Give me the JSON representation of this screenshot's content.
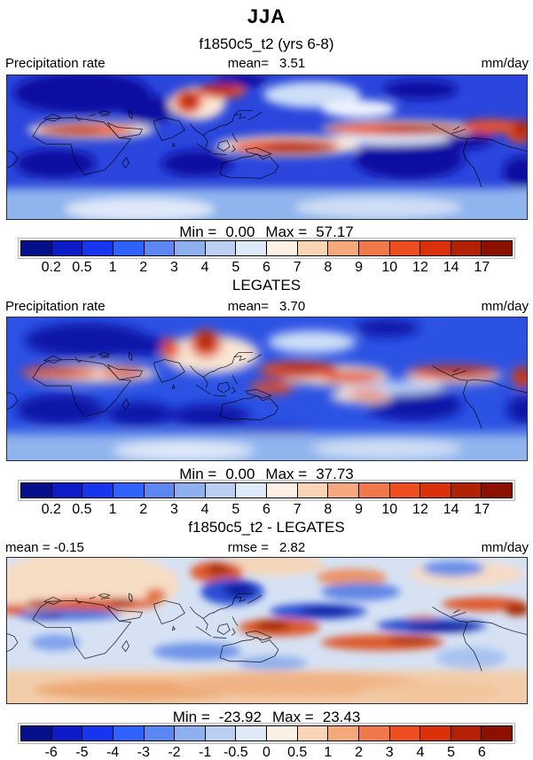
{
  "header": {
    "season_title": "JJA",
    "case_title": "f1850c5_t2 (yrs 6-8)"
  },
  "panels": [
    {
      "field_label": "Precipitation rate",
      "mean_label": "mean=",
      "mean_value": "3.51",
      "units": "mm/day",
      "min_label": "Min =",
      "min_value": "0.00",
      "max_label": "Max =",
      "max_value": "57.17"
    },
    {
      "title": "LEGATES",
      "field_label": "Precipitation rate",
      "mean_label": "mean=",
      "mean_value": "3.70",
      "units": "mm/day",
      "min_label": "Min =",
      "min_value": "0.00",
      "max_label": "Max =",
      "max_value": "37.73"
    },
    {
      "title": "f1850c5_t2 - LEGATES",
      "mean_label": "mean =",
      "mean_value": "-0.15",
      "rmse_label": "rmse =",
      "rmse_value": "2.82",
      "units": "mm/day",
      "min_label": "Min =",
      "min_value": "-23.92",
      "max_label": "Max =",
      "max_value": "23.43"
    }
  ],
  "colorbars": {
    "precip": {
      "ticks": [
        "0.2",
        "0.5",
        "1",
        "2",
        "3",
        "4",
        "5",
        "6",
        "7",
        "8",
        "9",
        "10",
        "12",
        "14",
        "17"
      ],
      "colors": [
        "#050f8c",
        "#0c1cc8",
        "#1536ee",
        "#2e62fa",
        "#5c86f2",
        "#8fb0f0",
        "#bccff2",
        "#dfeaf8",
        "#fdf1e5",
        "#fad4b5",
        "#f5a87c",
        "#f1784a",
        "#ee4d1f",
        "#da300c",
        "#b32104",
        "#8b1000"
      ]
    },
    "diff": {
      "ticks": [
        "-6",
        "-5",
        "-4",
        "-3",
        "-2",
        "-1",
        "-0.5",
        "0",
        "0.5",
        "1",
        "2",
        "3",
        "4",
        "5",
        "6"
      ],
      "colors": [
        "#050f8c",
        "#0c1cc8",
        "#1536ee",
        "#2e62fa",
        "#5c86f2",
        "#8fb0f0",
        "#bccff2",
        "#dfeaf8",
        "#fdf1e5",
        "#fad4b5",
        "#f5a87c",
        "#f1784a",
        "#ee4d1f",
        "#da300c",
        "#b32104",
        "#8b1000"
      ]
    }
  },
  "chart_data": [
    {
      "type": "heatmap",
      "title": "f1850c5_t2 (yrs 6-8) — JJA Precipitation rate",
      "season": "JJA",
      "units": "mm/day",
      "mean": 3.51,
      "min": 0.0,
      "max": 57.17,
      "contour_levels": [
        0.2,
        0.5,
        1,
        2,
        3,
        4,
        5,
        6,
        7,
        8,
        9,
        10,
        12,
        14,
        17
      ],
      "palette": "blue-white-red, 16 classes",
      "legend_position": "bottom horizontal colorbar"
    },
    {
      "type": "heatmap",
      "title": "LEGATES — JJA Precipitation rate",
      "season": "JJA",
      "units": "mm/day",
      "mean": 3.7,
      "min": 0.0,
      "max": 37.73,
      "contour_levels": [
        0.2,
        0.5,
        1,
        2,
        3,
        4,
        5,
        6,
        7,
        8,
        9,
        10,
        12,
        14,
        17
      ],
      "palette": "blue-white-red, 16 classes",
      "legend_position": "bottom horizontal colorbar"
    },
    {
      "type": "heatmap",
      "title": "f1850c5_t2 - LEGATES — JJA precipitation difference",
      "season": "JJA",
      "units": "mm/day",
      "mean": -0.15,
      "rmse": 2.82,
      "min": -23.92,
      "max": 23.43,
      "contour_levels": [
        -6,
        -5,
        -4,
        -3,
        -2,
        -1,
        -0.5,
        0,
        0.5,
        1,
        2,
        3,
        4,
        5,
        6
      ],
      "palette": "blue-white-red, 16 classes",
      "legend_position": "bottom horizontal colorbar"
    }
  ]
}
